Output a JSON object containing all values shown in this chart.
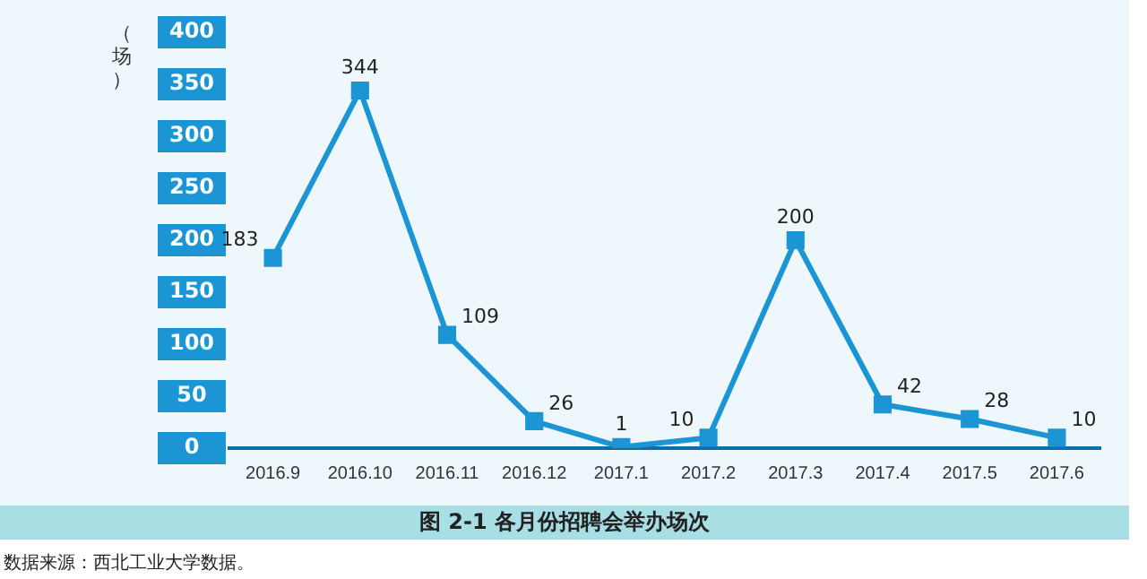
{
  "chart_data": {
    "type": "line",
    "title": "图 2-1  各月份招聘会举办场次",
    "ylabel": "（场）",
    "categories": [
      "2016.9",
      "2016.10",
      "2016.11",
      "2016.12",
      "2017.1",
      "2017.2",
      "2017.3",
      "2017.4",
      "2017.5",
      "2017.6"
    ],
    "series": [
      {
        "color": "#1b95d3",
        "values": [
          183,
          344,
          109,
          26,
          1,
          10,
          200,
          42,
          28,
          10
        ]
      }
    ],
    "ylim": [
      0,
      400
    ],
    "yticks": [
      0,
      50,
      100,
      150,
      200,
      250,
      300,
      350,
      400
    ],
    "grid": false,
    "legend": false,
    "marker": "square",
    "line_style": "solid",
    "data_labels": true,
    "annotations": [
      "数据来源：西北工业大学数据。"
    ]
  }
}
